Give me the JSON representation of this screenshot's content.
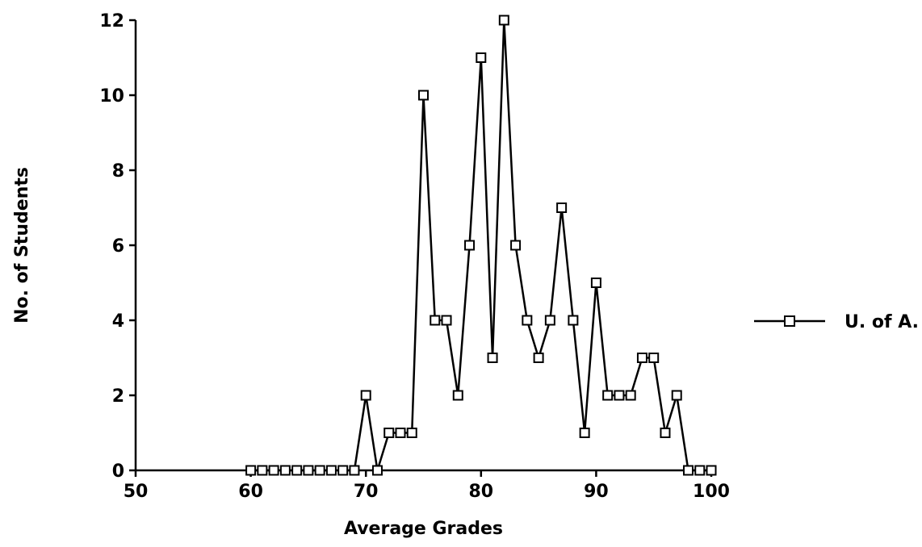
{
  "chart_data": {
    "type": "line",
    "xlabel": "Average Grades",
    "ylabel": "No. of Students",
    "xlim": [
      50,
      100
    ],
    "ylim": [
      0,
      12
    ],
    "xticks": [
      50,
      60,
      70,
      80,
      90,
      100
    ],
    "yticks": [
      0,
      2,
      4,
      6,
      8,
      10,
      12
    ],
    "grid": false,
    "legend": "right",
    "series": [
      {
        "name": "U. of A.",
        "color": "#000000",
        "marker": "square",
        "x": [
          60,
          61,
          62,
          63,
          64,
          65,
          66,
          67,
          68,
          69,
          70,
          71,
          72,
          73,
          74,
          75,
          76,
          77,
          78,
          79,
          80,
          81,
          82,
          83,
          84,
          85,
          86,
          87,
          88,
          89,
          90,
          91,
          92,
          93,
          94,
          95,
          96,
          97,
          98,
          99,
          100
        ],
        "y": [
          0,
          0,
          0,
          0,
          0,
          0,
          0,
          0,
          0,
          0,
          2,
          0,
          1,
          1,
          1,
          10,
          4,
          4,
          2,
          6,
          11,
          3,
          12,
          6,
          4,
          3,
          4,
          7,
          4,
          1,
          5,
          2,
          2,
          2,
          3,
          3,
          1,
          2,
          0,
          0,
          0
        ]
      }
    ]
  }
}
